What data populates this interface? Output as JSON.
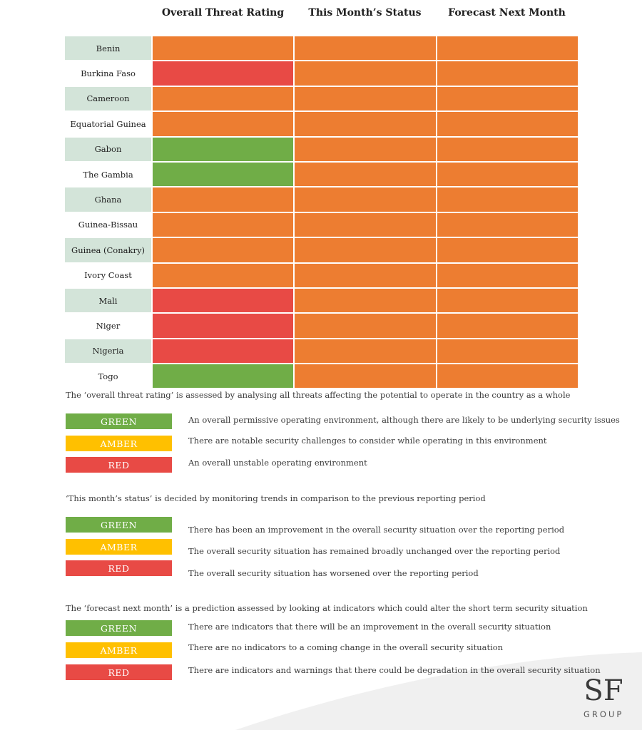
{
  "headers": {
    "overall": "Overall Threat Rating",
    "this_month": "This Month’s Status",
    "forecast": "Forecast Next Month"
  },
  "colors": {
    "orange": "#ed7d31",
    "red": "#e84a45",
    "green": "#70ad47",
    "amber": "#ffc000",
    "country_shade": "#d3e4d9"
  },
  "countries": [
    {
      "name": "Benin",
      "overall": "orange",
      "this_month": "orange",
      "forecast": "orange"
    },
    {
      "name": "Burkina Faso",
      "overall": "red",
      "this_month": "orange",
      "forecast": "orange"
    },
    {
      "name": "Cameroon",
      "overall": "orange",
      "this_month": "orange",
      "forecast": "orange"
    },
    {
      "name": "Equatorial Guinea",
      "overall": "orange",
      "this_month": "orange",
      "forecast": "orange"
    },
    {
      "name": "Gabon",
      "overall": "green",
      "this_month": "orange",
      "forecast": "orange"
    },
    {
      "name": "The Gambia",
      "overall": "green",
      "this_month": "orange",
      "forecast": "orange"
    },
    {
      "name": "Ghana",
      "overall": "orange",
      "this_month": "orange",
      "forecast": "orange"
    },
    {
      "name": "Guinea-Bissau",
      "overall": "orange",
      "this_month": "orange",
      "forecast": "orange"
    },
    {
      "name": "Guinea (Conakry)",
      "overall": "orange",
      "this_month": "orange",
      "forecast": "orange"
    },
    {
      "name": "Ivory Coast",
      "overall": "orange",
      "this_month": "orange",
      "forecast": "orange"
    },
    {
      "name": "Mali",
      "overall": "red",
      "this_month": "orange",
      "forecast": "orange"
    },
    {
      "name": "Niger",
      "overall": "red",
      "this_month": "orange",
      "forecast": "orange"
    },
    {
      "name": "Nigeria",
      "overall": "red",
      "this_month": "orange",
      "forecast": "orange"
    },
    {
      "name": "Togo",
      "overall": "green",
      "this_month": "orange",
      "forecast": "orange"
    }
  ],
  "notes": {
    "overall": "The ‘overall threat rating’ is assessed by analysing all threats affecting the potential to operate in the country as a whole",
    "this_month": "‘This month’s status’ is decided by monitoring trends in comparison to the previous reporting period",
    "forecast": "The ‘forecast next month’ is a prediction assessed by looking at indicators which could alter the short term security situation"
  },
  "labels": {
    "green": "GREEN",
    "amber": "AMBER",
    "red": "RED"
  },
  "legend_overall": {
    "green": "An overall permissive operating environment, although there are likely to be underlying security issues",
    "amber": "There are notable security challenges to consider while operating in this environment",
    "red": "An overall unstable operating environment"
  },
  "legend_this_month": {
    "green": "There has been an improvement in the overall security situation over the reporting period",
    "amber": "The overall security situation has remained broadly unchanged over the reporting period",
    "red": "The overall security situation has worsened over the reporting period"
  },
  "legend_forecast": {
    "green": "There are indicators that there will be an improvement in the overall security situation",
    "amber": "There are no indicators to a coming change in the overall security situation",
    "red": "There are indicators and warnings that there could be degradation in the overall security situation"
  },
  "logo": {
    "mark": "SF",
    "text": "GROUP"
  }
}
